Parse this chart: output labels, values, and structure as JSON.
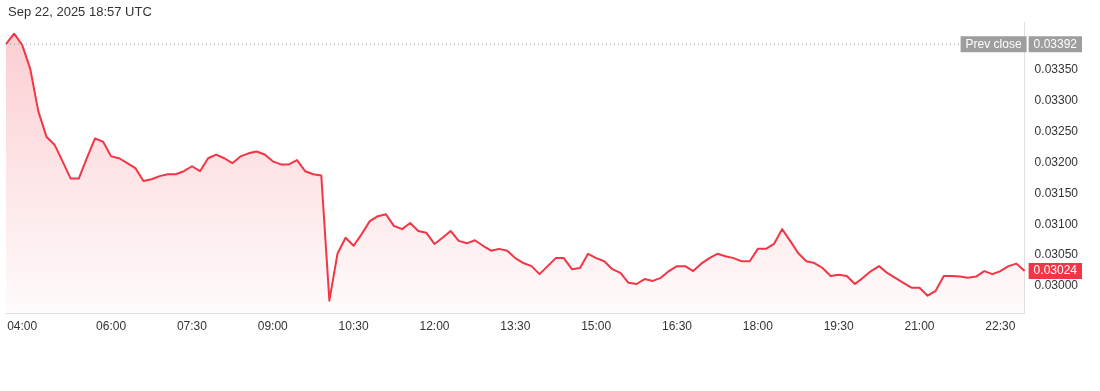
{
  "chart_data": {
    "type": "area",
    "title": "Sep 22, 2025 18:57 UTC",
    "categories": [
      null,
      null,
      "04:00",
      null,
      null,
      null,
      null,
      null,
      null,
      null,
      null,
      null,
      null,
      "06:00",
      null,
      null,
      null,
      null,
      null,
      null,
      null,
      null,
      null,
      "07:30",
      null,
      null,
      null,
      null,
      null,
      null,
      null,
      null,
      null,
      "09:00",
      null,
      null,
      null,
      null,
      null,
      null,
      null,
      null,
      null,
      "10:30",
      null,
      null,
      null,
      null,
      null,
      null,
      null,
      null,
      null,
      "12:00",
      null,
      null,
      null,
      null,
      null,
      null,
      null,
      null,
      null,
      "13:30",
      null,
      null,
      null,
      null,
      null,
      null,
      null,
      null,
      null,
      "15:00",
      null,
      null,
      null,
      null,
      null,
      null,
      null,
      null,
      null,
      "16:30",
      null,
      null,
      null,
      null,
      null,
      null,
      null,
      null,
      null,
      "18:00",
      null,
      null,
      null,
      null,
      null,
      null,
      null,
      null,
      null,
      "19:30",
      null,
      null,
      null,
      null,
      null,
      null,
      null,
      null,
      null,
      "21:00",
      null,
      null,
      null,
      null,
      null,
      null,
      null,
      null,
      null,
      "22:30",
      null,
      null,
      null
    ],
    "series": [
      {
        "color": "#f23645",
        "values": [
          0.03392,
          0.03409,
          0.03391,
          0.03352,
          0.03283,
          0.03242,
          0.03229,
          0.03202,
          0.03174,
          0.03174,
          0.03207,
          0.03239,
          0.03234,
          0.0321,
          0.03207,
          0.03199,
          0.03191,
          0.0317,
          0.03173,
          0.03178,
          0.03181,
          0.03181,
          0.03186,
          0.03194,
          0.03186,
          0.03207,
          0.03213,
          0.03207,
          0.03199,
          0.0321,
          0.03215,
          0.03218,
          0.03213,
          0.03202,
          0.03197,
          0.03197,
          0.03204,
          0.03186,
          0.03181,
          0.03179,
          0.02976,
          0.03052,
          0.03078,
          0.03065,
          0.03084,
          0.03105,
          0.03113,
          0.03116,
          0.03097,
          0.03092,
          0.03102,
          0.03089,
          0.03086,
          0.03068,
          0.03078,
          0.03089,
          0.03073,
          0.03069,
          0.03074,
          0.03065,
          0.03057,
          0.0306,
          0.03057,
          0.03045,
          0.03037,
          0.03032,
          0.03019,
          0.03032,
          0.03045,
          0.03045,
          0.03027,
          0.03029,
          0.03052,
          0.03045,
          0.0304,
          0.03027,
          0.03021,
          0.03005,
          0.03003,
          0.03011,
          0.03008,
          0.03013,
          0.03024,
          0.03032,
          0.03032,
          0.03024,
          0.03036,
          0.03045,
          0.03052,
          0.03048,
          0.03045,
          0.0304,
          0.0304,
          0.0306,
          0.0306,
          0.03068,
          0.03092,
          0.03073,
          0.03053,
          0.0304,
          0.03037,
          0.03029,
          0.03016,
          0.03018,
          0.03016,
          0.03003,
          0.03013,
          0.03024,
          0.03032,
          0.03021,
          0.03013,
          0.03005,
          0.02997,
          0.02997,
          0.02984,
          0.02992,
          0.03016,
          0.03016,
          0.03015,
          0.03013,
          0.03015,
          0.03024,
          0.03019,
          0.03024,
          0.03032,
          0.03036,
          0.03024
        ]
      }
    ],
    "ylim": [
      0.02955,
      0.03428
    ],
    "yticks": [
      {
        "value": 0.03,
        "label": "0.03000"
      },
      {
        "value": 0.0305,
        "label": "0.03050"
      },
      {
        "value": 0.031,
        "label": "0.03100"
      },
      {
        "value": 0.0315,
        "label": "0.03150"
      },
      {
        "value": 0.032,
        "label": "0.03200"
      },
      {
        "value": 0.0325,
        "label": "0.03250"
      },
      {
        "value": 0.033,
        "label": "0.03300"
      },
      {
        "value": 0.0335,
        "label": "0.03350"
      }
    ],
    "ref_lines": [
      {
        "axis": "y",
        "value": 0.03392,
        "label": "Prev close",
        "color": "#9e9e9e",
        "line_style": "dotted"
      }
    ],
    "annotations": [
      "0.03392",
      "0.03024"
    ],
    "grid": false,
    "legend": false,
    "marker": "none",
    "line_style": "solid"
  }
}
